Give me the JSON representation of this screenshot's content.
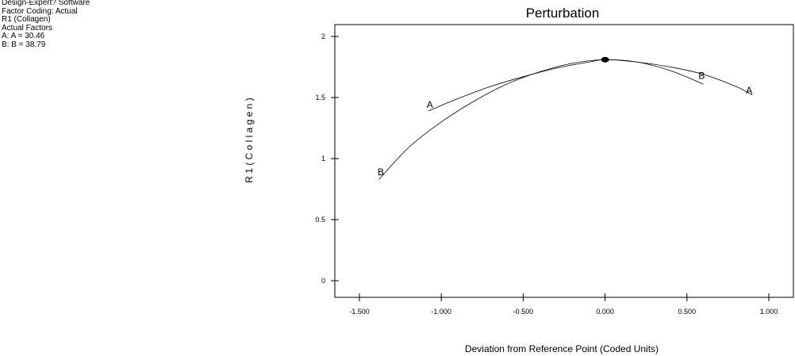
{
  "info": {
    "lines": [
      "Design-Expert? Software",
      "Factor Coding: Actual",
      "R1 (Collagen)",
      "",
      "Actual Factors",
      "A: A = 30.46",
      "B: B = 38.79"
    ]
  },
  "chart_data": {
    "type": "line",
    "title": "Perturbation",
    "xlabel": "Deviation from Reference Point (Coded Units)",
    "ylabel": "R 1  ( C o l l a g e n )",
    "xlim": [
      -1.5,
      1.0
    ],
    "ylim": [
      0,
      2
    ],
    "xticks": [
      -1.5,
      -1.0,
      -0.5,
      0.0,
      0.5,
      1.0
    ],
    "xtick_labels": [
      "-1.500",
      "-1.000",
      "-0.500",
      "0.000",
      "0.500",
      "1.000"
    ],
    "yticks": [
      0,
      0.5,
      1,
      1.5,
      2
    ],
    "ytick_labels": [
      "0",
      "0.5",
      "1",
      "1.5",
      "2"
    ],
    "reference_point": {
      "x": 0.0,
      "y": 1.81
    },
    "series": [
      {
        "name": "A",
        "x": [
          -1.08,
          -0.9,
          -0.7,
          -0.5,
          -0.3,
          -0.1,
          0.0,
          0.2,
          0.4,
          0.6,
          0.8,
          0.9
        ],
        "y": [
          1.39,
          1.49,
          1.59,
          1.67,
          1.74,
          1.79,
          1.81,
          1.79,
          1.75,
          1.69,
          1.59,
          1.52
        ],
        "labels": [
          {
            "text": "A",
            "x": -1.07,
            "y": 1.44
          },
          {
            "text": "A",
            "x": 0.88,
            "y": 1.56
          }
        ]
      },
      {
        "name": "B",
        "x": [
          -1.38,
          -1.2,
          -1.0,
          -0.8,
          -0.6,
          -0.4,
          -0.2,
          0.0,
          0.2,
          0.4,
          0.6
        ],
        "y": [
          0.83,
          1.09,
          1.3,
          1.47,
          1.61,
          1.71,
          1.78,
          1.81,
          1.79,
          1.72,
          1.61
        ],
        "labels": [
          {
            "text": "B",
            "x": -1.37,
            "y": 0.89
          },
          {
            "text": "B",
            "x": 0.59,
            "y": 1.68
          }
        ]
      }
    ]
  }
}
